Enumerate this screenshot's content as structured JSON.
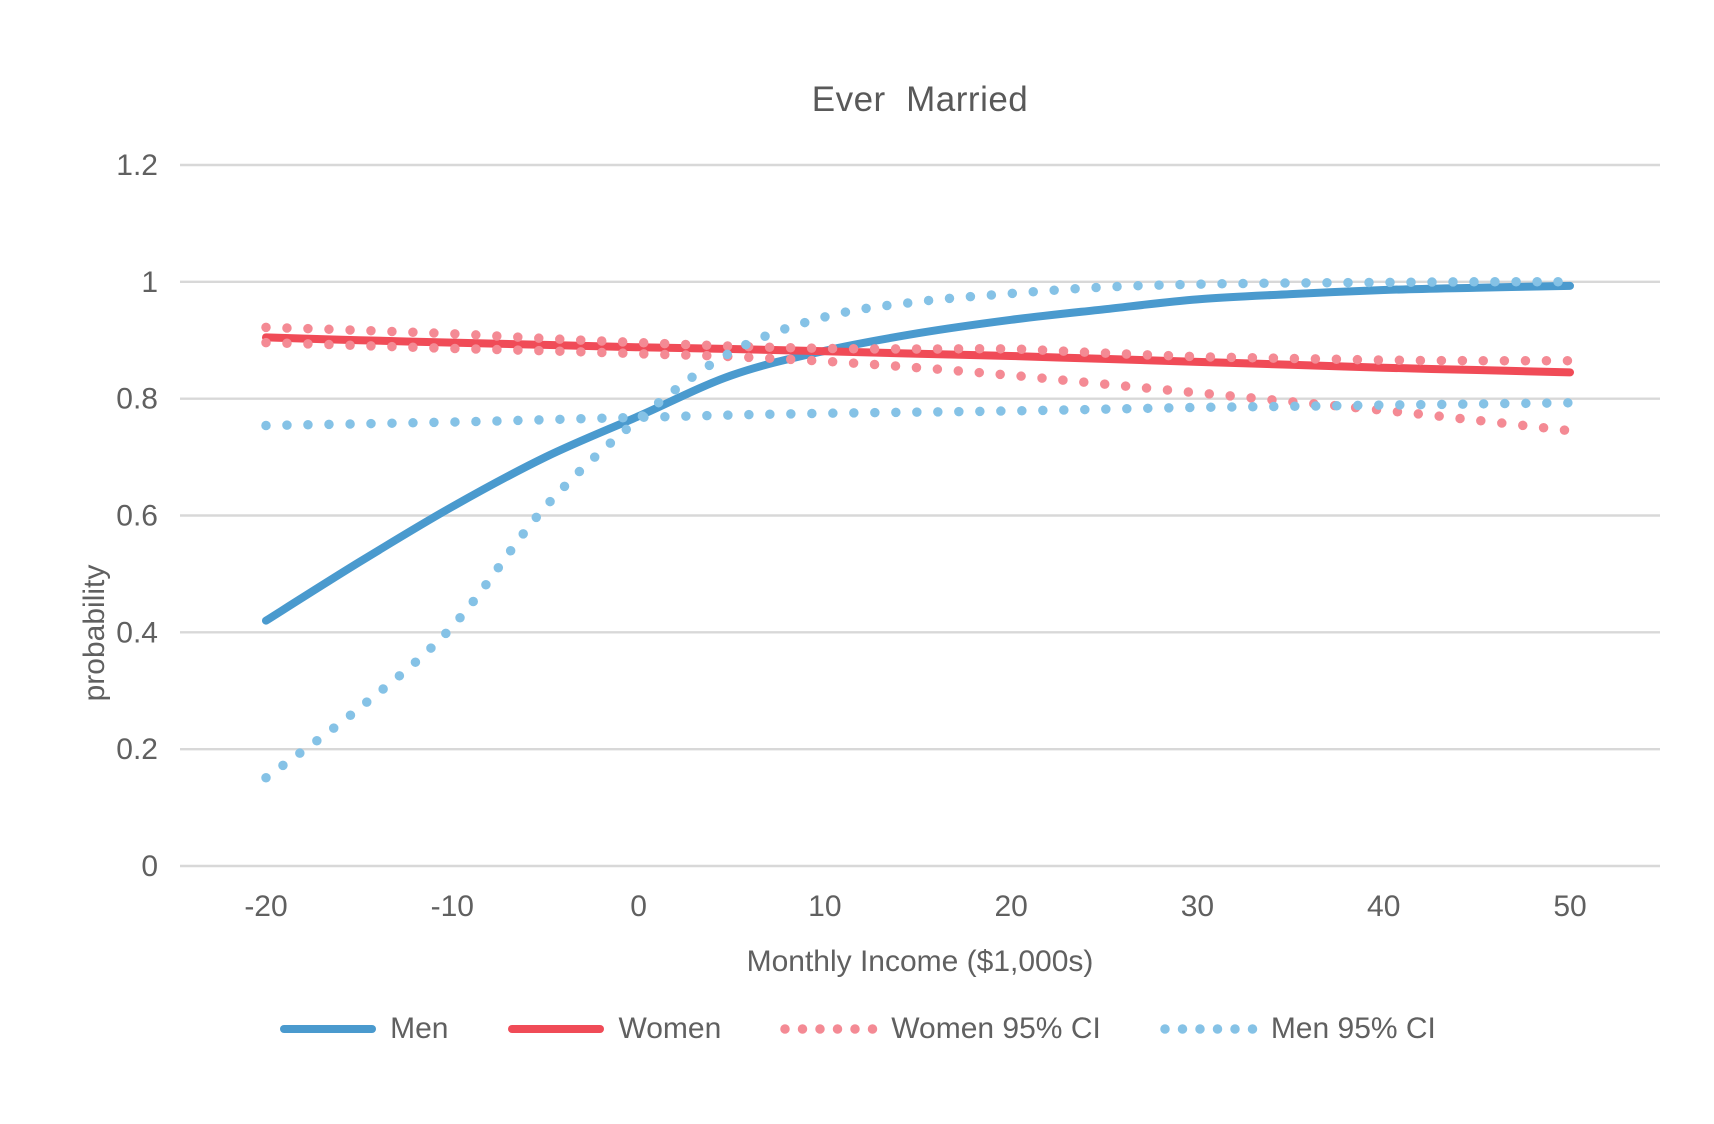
{
  "page": {
    "background_color": "#FFFFFF",
    "text_color": "#606060",
    "grid_color": "#D8D8D8"
  },
  "chart_data": {
    "type": "line",
    "title": "Ever  Married",
    "xlabel": "Monthly Income ($1,000s)",
    "ylabel": "probability",
    "x_ticks": [
      "-20",
      "-10",
      "0",
      "10",
      "20",
      "30",
      "40",
      "50"
    ],
    "x_tick_values": [
      -20,
      -10,
      0,
      10,
      20,
      30,
      40,
      50
    ],
    "y_ticks": [
      "1.2",
      "1",
      "0.8",
      "0.6",
      "0.4",
      "0.2",
      "0"
    ],
    "y_tick_values": [
      1.2,
      1.0,
      0.8,
      0.6,
      0.4,
      0.2,
      0
    ],
    "xlim": [
      -20,
      50
    ],
    "ylim": [
      0,
      1.2
    ],
    "grid": "horizontal gridlines only",
    "legend_position": "bottom",
    "x": [
      -20,
      -15,
      -10,
      -5,
      0,
      5,
      10,
      15,
      20,
      25,
      30,
      35,
      40,
      45,
      50
    ],
    "series": [
      {
        "name": "Men",
        "style": "solid",
        "color": "#4A9ACE",
        "values": [
          0.42,
          0.52,
          0.615,
          0.7,
          0.77,
          0.84,
          0.882,
          0.912,
          0.935,
          0.953,
          0.97,
          0.979,
          0.986,
          0.99,
          0.993
        ]
      },
      {
        "name": "Women",
        "style": "solid",
        "color": "#F04B57",
        "values": [
          0.905,
          0.9,
          0.896,
          0.892,
          0.888,
          0.885,
          0.881,
          0.877,
          0.873,
          0.868,
          0.863,
          0.858,
          0.853,
          0.849,
          0.845
        ]
      },
      {
        "name": "Women 95% CI",
        "style": "dotted",
        "color": "#F48A94",
        "upper": [
          0.922,
          0.917,
          0.911,
          0.903,
          0.896,
          0.89,
          0.886,
          0.885,
          0.885,
          0.878,
          0.872,
          0.869,
          0.866,
          0.865,
          0.865
        ],
        "lower": [
          0.896,
          0.891,
          0.886,
          0.882,
          0.877,
          0.872,
          0.864,
          0.853,
          0.84,
          0.825,
          0.81,
          0.795,
          0.78,
          0.763,
          0.745
        ]
      },
      {
        "name": "Men 95% CI",
        "style": "dotted",
        "color": "#85C2E6",
        "upper": [
          0.151,
          0.27,
          0.41,
          0.615,
          0.765,
          0.88,
          0.94,
          0.966,
          0.98,
          0.991,
          0.996,
          0.998,
          0.999,
          1.0,
          1.0
        ],
        "lower": [
          0.754,
          0.757,
          0.76,
          0.764,
          0.768,
          0.772,
          0.775,
          0.777,
          0.779,
          0.782,
          0.785,
          0.787,
          0.789,
          0.791,
          0.793
        ]
      }
    ]
  }
}
